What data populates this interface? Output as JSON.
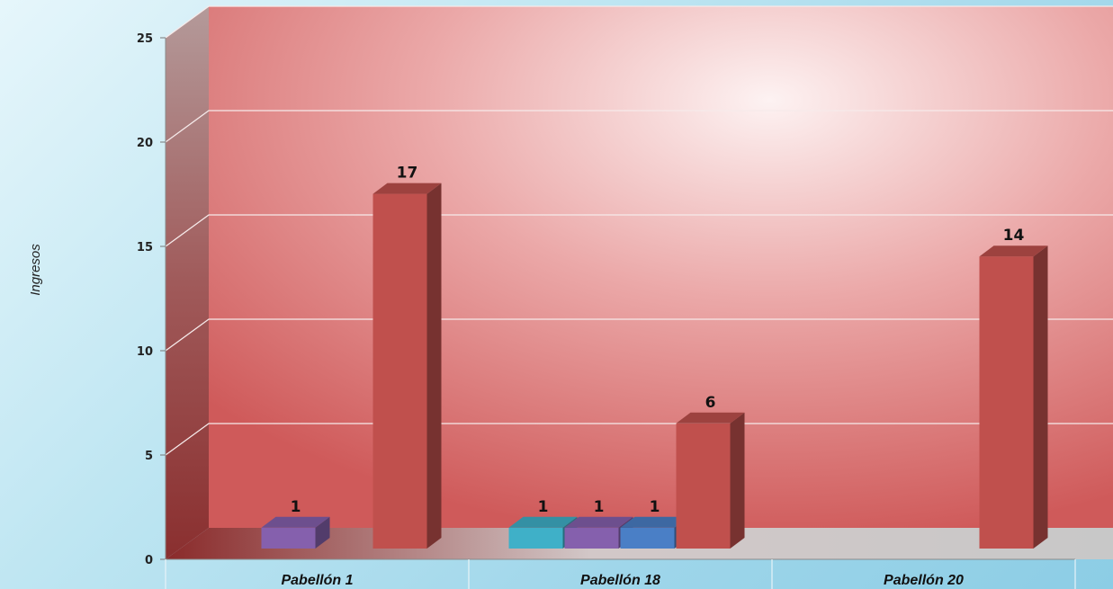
{
  "chart_data": {
    "type": "bar",
    "ylabel": "Ingresos",
    "xlabel": "",
    "ylim": [
      0,
      25
    ],
    "yticks": [
      0,
      5,
      10,
      15,
      20,
      25
    ],
    "categories": [
      "Pabellón 1",
      "Pabellón 18",
      "Pabellón 20"
    ],
    "series": [
      {
        "values": [
          null,
          1,
          null
        ],
        "color": "#3fb0c8"
      },
      {
        "values": [
          1,
          1,
          null
        ],
        "color": "#8560ad"
      },
      {
        "values": [
          null,
          1,
          null
        ],
        "color": "#4a7fc6"
      },
      {
        "values": [
          17,
          6,
          14
        ],
        "color": "#c0504d"
      }
    ],
    "grid": true,
    "style": "3d-column"
  }
}
